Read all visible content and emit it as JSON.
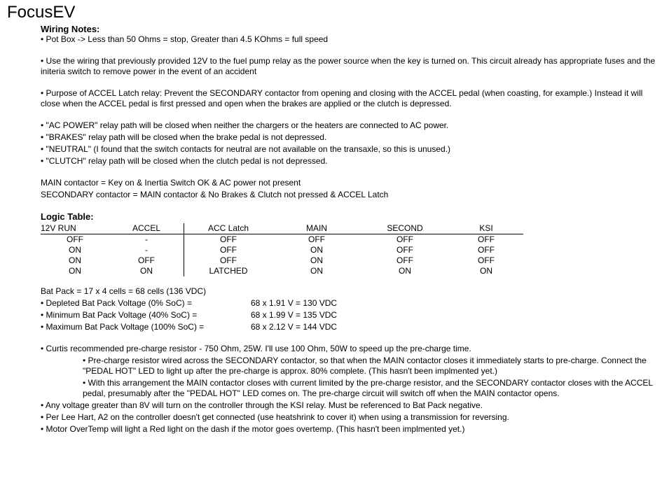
{
  "title": "FocusEV",
  "heading": "Wiring Notes:",
  "notes1": [
    "• Pot Box -> Less than 50 Ohms = stop, Greater than 4.5 KOhms = full speed"
  ],
  "notes2": [
    "• Use the wiring that previously provided 12V to the fuel pump relay as the power source when the key is turned on.  This circuit already has appropriate fuses and the initeria switch to remove power in the event of an accident"
  ],
  "notes3": [
    "• Purpose of ACCEL Latch relay: Prevent the SECONDARY contactor from opening and closing with the ACCEL pedal (when coasting, for example.)  Instead it will close when the ACCEL pedal is first pressed and open when the brakes are applied or the clutch is depressed."
  ],
  "notes4": [
    "• \"AC POWER\" relay path will be closed when neither the chargers or the heaters are connected to AC power.",
    "• \"BRAKES\" relay path will be closed when the brake pedal is not depressed.",
    "• \"NEUTRAL\"  (I found that the switch contacts for neutral are not available on the transaxle, so this is unused.)",
    "• \"CLUTCH\"  relay path will be closed when the clutch pedal is not depressed."
  ],
  "notes5": [
    "MAIN contactor = Key on & Inertia Switch OK & AC power not present",
    "SECONDARY contactor = MAIN contactor & No Brakes & Clutch not pressed & ACCEL Latch"
  ],
  "logic_title": "Logic Table:",
  "logic_table": {
    "columns": [
      "12V RUN",
      "ACCEL",
      "ACC Latch",
      "MAIN",
      "SECOND",
      "KSI"
    ],
    "col_widths": [
      "90px",
      "90px",
      "110px",
      "110px",
      "110px",
      "90px"
    ],
    "divider_after_col": 1,
    "rows": [
      [
        "OFF",
        "-",
        "OFF",
        "OFF",
        "OFF",
        "OFF"
      ],
      [
        "ON",
        "-",
        "OFF",
        "ON",
        "OFF",
        "OFF"
      ],
      [
        "ON",
        "OFF",
        "OFF",
        "ON",
        "OFF",
        "OFF"
      ],
      [
        "ON",
        "ON",
        "LATCHED",
        "ON",
        "ON",
        "ON"
      ]
    ]
  },
  "batpack_line": "Bat Pack = 17 x 4 cells = 68 cells (136 VDC)",
  "voltages": [
    {
      "label": "• Depleted Bat Pack Voltage (0% SoC) =",
      "value": "68 x 1.91 V = 130 VDC"
    },
    {
      "label": "• Minimum Bat Pack Voltage (40% SoC) =",
      "value": "68 x 1.99 V = 135 VDC"
    },
    {
      "label": "• Maximum Bat Pack Voltage (100% SoC) =",
      "value": "68 x 2.12 V = 144 VDC"
    }
  ],
  "notes6": [
    "• Curtis recommended pre-charge resistor - 750 Ohm, 25W.  I'll use 100 Ohm, 50W to speed up the pre-charge time."
  ],
  "sub_notes": [
    "• Pre-charge resistor wired across the SECONDARY contactor, so that when the MAIN contactor closes it immediately starts to pre-charge.  Connect the \"PEDAL HOT\" LED to light up after the pre-charge is approx. 80% complete. (This hasn't been implmented yet.)",
    "• With this arrangement the MAIN contactor closes with current limited by the pre-charge resistor, and the SECONDARY contactor closes with the ACCEL pedal, presumably after the \"PEDAL HOT\" LED comes on.  The pre-charge circuit will switch off when the MAIN contactor opens."
  ],
  "notes7": [
    "• Any voltage greater than 8V will turn on the controller through the KSI relay. Must be referenced to Bat Pack negative.",
    "• Per Lee Hart, A2 on the controller doesn't get connected (use heatshrink to cover it) when using a transmission for reversing.",
    "• Motor OverTemp will light a Red light on the dash if the motor goes overtemp. (This hasn't been implmented yet.)"
  ]
}
